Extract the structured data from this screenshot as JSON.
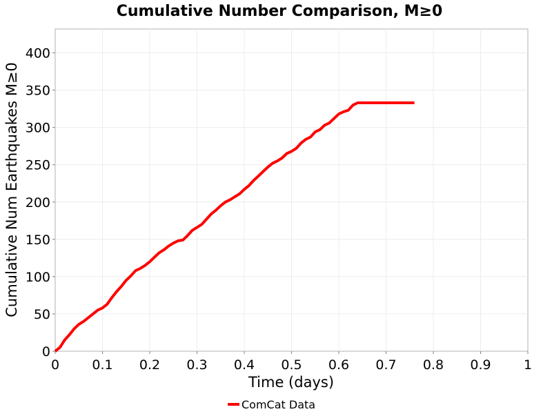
{
  "chart_data": {
    "type": "line",
    "title": "Cumulative Number Comparison, M≥0",
    "xlabel": "Time (days)",
    "ylabel": "Cumulative Num Earthquakes M≥0",
    "xlim": [
      0,
      1
    ],
    "ylim": [
      0,
      432
    ],
    "xticks": [
      0,
      0.1,
      0.2,
      0.3,
      0.4,
      0.5,
      0.6,
      0.7,
      0.8,
      0.9,
      1
    ],
    "xtick_labels": [
      "0",
      "0.1",
      "0.2",
      "0.3",
      "0.4",
      "0.5",
      "0.6",
      "0.7",
      "0.8",
      "0.9",
      "1"
    ],
    "yticks": [
      0,
      50,
      100,
      150,
      200,
      250,
      300,
      350,
      400
    ],
    "ytick_labels": [
      "0",
      "50",
      "100",
      "150",
      "200",
      "250",
      "300",
      "350",
      "400"
    ],
    "grid": true,
    "legend_position": "bottom-center",
    "series": [
      {
        "name": "ComCat Data",
        "color": "#ff0000",
        "x": [
          0,
          0.01,
          0.02,
          0.03,
          0.04,
          0.05,
          0.06,
          0.07,
          0.08,
          0.09,
          0.1,
          0.11,
          0.12,
          0.13,
          0.14,
          0.15,
          0.16,
          0.17,
          0.18,
          0.19,
          0.2,
          0.21,
          0.22,
          0.23,
          0.24,
          0.25,
          0.26,
          0.27,
          0.28,
          0.29,
          0.3,
          0.31,
          0.32,
          0.33,
          0.34,
          0.35,
          0.36,
          0.37,
          0.38,
          0.39,
          0.4,
          0.41,
          0.42,
          0.43,
          0.44,
          0.45,
          0.46,
          0.47,
          0.48,
          0.49,
          0.5,
          0.51,
          0.52,
          0.53,
          0.54,
          0.55,
          0.56,
          0.57,
          0.58,
          0.59,
          0.6,
          0.61,
          0.62,
          0.63,
          0.64,
          0.65,
          0.66,
          0.67,
          0.68,
          0.69,
          0.7,
          0.71,
          0.72,
          0.73,
          0.74,
          0.75,
          0.76
        ],
        "y": [
          0,
          5,
          15,
          22,
          30,
          36,
          40,
          45,
          50,
          55,
          58,
          63,
          72,
          80,
          87,
          95,
          101,
          108,
          111,
          115,
          120,
          126,
          132,
          136,
          141,
          145,
          148,
          149,
          155,
          162,
          166,
          170,
          177,
          184,
          189,
          195,
          200,
          203,
          207,
          211,
          217,
          222,
          229,
          235,
          241,
          247,
          252,
          255,
          259,
          265,
          268,
          272,
          279,
          284,
          287,
          294,
          297,
          303,
          306,
          312,
          318,
          321,
          323,
          330,
          333,
          333,
          333,
          333,
          333,
          333,
          333,
          333,
          333,
          333,
          333,
          333,
          333
        ]
      }
    ]
  }
}
